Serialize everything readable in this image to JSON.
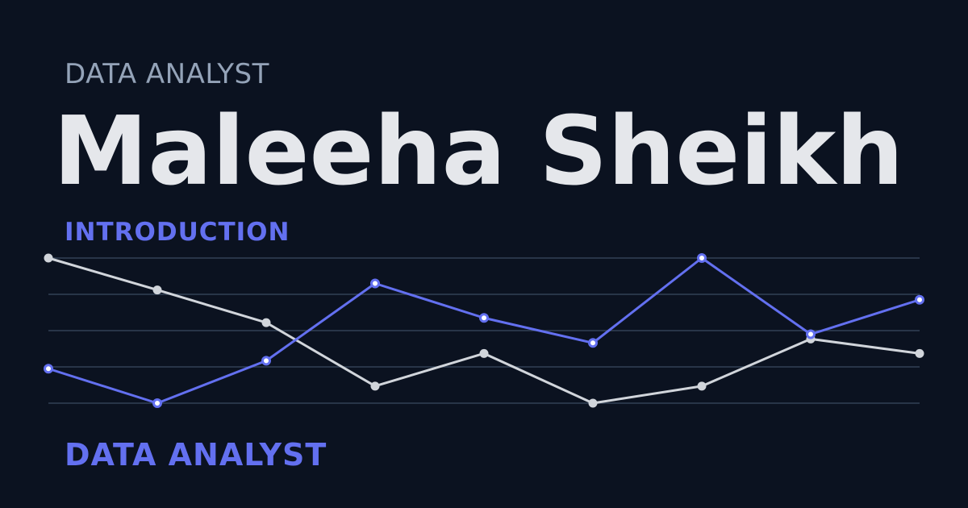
{
  "header": {
    "eyebrow": "DATA ANALYST",
    "name": "Maleeha Sheikh"
  },
  "section": {
    "label": "INTRODUCTION"
  },
  "footer": {
    "role": "DATA ANALYST"
  },
  "colors": {
    "background": "#0b1220",
    "accent": "#6370f0",
    "secondary_line": "#d1d5db",
    "grid": "#334155"
  },
  "chart_data": {
    "type": "line",
    "x": [
      0,
      1,
      2,
      3,
      4,
      5,
      6,
      7,
      8
    ],
    "ylim": [
      0,
      4
    ],
    "grid": true,
    "gridlines": [
      0,
      1,
      2,
      3,
      4
    ],
    "legend": "none",
    "series": [
      {
        "color": "#6370f0",
        "values": [
          0.95,
          0.0,
          1.17,
          3.3,
          2.35,
          1.66,
          4.0,
          1.9,
          2.85
        ]
      },
      {
        "color": "#d1d5db",
        "values": [
          4.0,
          3.12,
          2.22,
          0.47,
          1.37,
          0.0,
          0.47,
          1.77,
          1.37
        ]
      }
    ]
  }
}
